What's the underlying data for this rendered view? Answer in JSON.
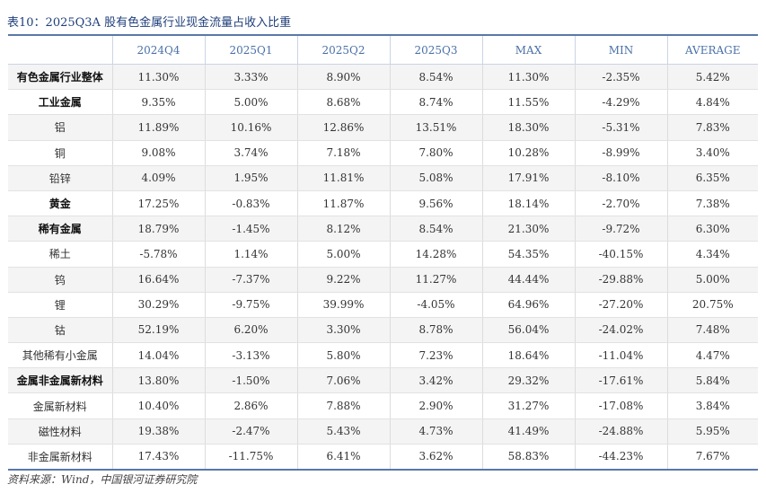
{
  "title": "表10：2025Q3A 股有色金属行业现金流量占收入比重",
  "columns": [
    "",
    "2024Q4",
    "2025Q1",
    "2025Q2",
    "2025Q3",
    "MAX",
    "MIN",
    "AVERAGE"
  ],
  "rows": [
    {
      "name": "有色金属行业整体",
      "bold": true,
      "values": [
        "11.30%",
        "3.33%",
        "8.90%",
        "8.54%",
        "11.30%",
        "-2.35%",
        "5.42%"
      ]
    },
    {
      "name": "工业金属",
      "bold": true,
      "values": [
        "9.35%",
        "5.00%",
        "8.68%",
        "8.74%",
        "11.55%",
        "-4.29%",
        "4.84%"
      ]
    },
    {
      "name": "铝",
      "bold": false,
      "values": [
        "11.89%",
        "10.16%",
        "12.86%",
        "13.51%",
        "18.30%",
        "-5.31%",
        "7.83%"
      ]
    },
    {
      "name": "铜",
      "bold": false,
      "values": [
        "9.08%",
        "3.74%",
        "7.18%",
        "7.80%",
        "10.28%",
        "-8.99%",
        "3.40%"
      ]
    },
    {
      "name": "铅锌",
      "bold": false,
      "values": [
        "4.09%",
        "1.95%",
        "11.81%",
        "5.08%",
        "17.91%",
        "-8.10%",
        "6.35%"
      ]
    },
    {
      "name": "黄金",
      "bold": true,
      "values": [
        "17.25%",
        "-0.83%",
        "11.87%",
        "9.56%",
        "18.14%",
        "-2.70%",
        "7.38%"
      ]
    },
    {
      "name": "稀有金属",
      "bold": true,
      "values": [
        "18.79%",
        "-1.45%",
        "8.12%",
        "8.54%",
        "21.30%",
        "-9.72%",
        "6.30%"
      ]
    },
    {
      "name": "稀土",
      "bold": false,
      "values": [
        "-5.78%",
        "1.14%",
        "5.00%",
        "14.28%",
        "54.35%",
        "-40.15%",
        "4.34%"
      ]
    },
    {
      "name": "钨",
      "bold": false,
      "values": [
        "16.64%",
        "-7.37%",
        "9.22%",
        "11.27%",
        "44.44%",
        "-29.88%",
        "5.00%"
      ]
    },
    {
      "name": "锂",
      "bold": false,
      "values": [
        "30.29%",
        "-9.75%",
        "39.99%",
        "-4.05%",
        "64.96%",
        "-27.20%",
        "20.75%"
      ]
    },
    {
      "name": "钴",
      "bold": false,
      "values": [
        "52.19%",
        "6.20%",
        "3.30%",
        "8.78%",
        "56.04%",
        "-24.02%",
        "7.48%"
      ]
    },
    {
      "name": "其他稀有小金属",
      "bold": false,
      "values": [
        "14.04%",
        "-3.13%",
        "5.80%",
        "7.23%",
        "18.64%",
        "-11.04%",
        "4.47%"
      ]
    },
    {
      "name": "金属非金属新材料",
      "bold": true,
      "values": [
        "13.80%",
        "-1.50%",
        "7.06%",
        "3.42%",
        "29.32%",
        "-17.61%",
        "5.84%"
      ]
    },
    {
      "name": "金属新材料",
      "bold": false,
      "values": [
        "10.40%",
        "2.86%",
        "7.88%",
        "2.90%",
        "31.27%",
        "-17.08%",
        "3.84%"
      ]
    },
    {
      "name": "磁性材料",
      "bold": false,
      "values": [
        "19.38%",
        "-2.47%",
        "5.43%",
        "4.73%",
        "41.49%",
        "-24.88%",
        "5.95%"
      ]
    },
    {
      "name": "非金属新材料",
      "bold": false,
      "values": [
        "17.43%",
        "-11.75%",
        "6.41%",
        "3.62%",
        "58.83%",
        "-44.23%",
        "7.67%"
      ]
    }
  ],
  "source": "资料来源：Wind，中国银河证券研究院"
}
